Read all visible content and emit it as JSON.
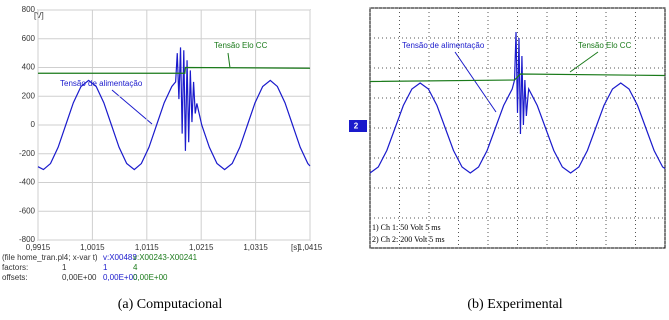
{
  "chart_data": [
    {
      "type": "line",
      "caption": "(a)  Computacional",
      "y_unit": "[V]",
      "x_unit": "[s]",
      "xlim": [
        0.9915,
        1.0415
      ],
      "xticks": [
        {
          "value": 0.9915,
          "label": "0,9915"
        },
        {
          "value": 1.0015,
          "label": "1,0015"
        },
        {
          "value": 1.0115,
          "label": "1,0115"
        },
        {
          "value": 1.0215,
          "label": "1,0215"
        },
        {
          "value": 1.0315,
          "label": "1,0315"
        },
        {
          "value": 1.0415,
          "label": "1,0415"
        }
      ],
      "ylim": [
        -800,
        800
      ],
      "yticks": [
        -800,
        -600,
        -400,
        -200,
        0,
        200,
        400,
        600,
        800
      ],
      "grid": true,
      "annotations": [
        "Tensão de alimentação",
        "Tensão Elo CC"
      ],
      "series": [
        {
          "color": "#1a1acc",
          "x": [
            0.9915,
            0.9925,
            0.9938,
            0.9952,
            0.9966,
            0.998,
            0.9994,
            1.0008,
            1.0022,
            1.0036,
            1.005,
            1.0064,
            1.0078,
            1.0092,
            1.0105,
            1.0119,
            1.0133,
            1.0147,
            1.0161,
            1.0168,
            1.0171,
            1.0174,
            1.0177,
            1.018,
            1.0183,
            1.0186,
            1.0189,
            1.0192,
            1.0195,
            1.0198,
            1.0201,
            1.0204,
            1.0207,
            1.0216,
            1.023,
            1.0244,
            1.0258,
            1.0272,
            1.0286,
            1.03,
            1.0314,
            1.0328,
            1.0342,
            1.0355,
            1.0369,
            1.0383,
            1.0397,
            1.0411,
            1.0415
          ],
          "values": [
            -290,
            -310,
            -268,
            -155,
            0,
            155,
            268,
            310,
            268,
            155,
            0,
            -155,
            -268,
            -310,
            -268,
            -155,
            0,
            155,
            268,
            300,
            500,
            180,
            540,
            -60,
            520,
            -180,
            450,
            -120,
            380,
            20,
            300,
            80,
            150,
            0,
            -155,
            -268,
            -310,
            -268,
            -155,
            0,
            155,
            268,
            310,
            268,
            155,
            0,
            -155,
            -268,
            -285
          ]
        },
        {
          "color": "#1a7a1a",
          "x": [
            0.9915,
            1.0185,
            1.0186,
            1.0415
          ],
          "values": [
            360,
            360,
            400,
            395
          ]
        }
      ],
      "footer": [
        [
          "(file home_tran.pl4; x-var t)",
          "v:X00483",
          "v:X00243-X00241"
        ],
        [
          "factors:",
          "1",
          "1",
          "4"
        ],
        [
          "offsets:",
          "0,00E+00",
          "0,00E+00",
          "0,00E+00"
        ]
      ]
    },
    {
      "type": "oscilloscope",
      "caption": "(b)  Experimental",
      "xlim": [
        0,
        10
      ],
      "xticks": [
        0,
        1,
        2,
        3,
        4,
        5,
        6,
        7,
        8,
        9,
        10
      ],
      "ylim": [
        -4,
        4
      ],
      "yticks": [
        -4,
        -3,
        -2,
        -1,
        0,
        1,
        2,
        3,
        4
      ],
      "grid": true,
      "annotations": [
        "Tensão de alimentação",
        "Tensão Elo CC"
      ],
      "channel_marker": "2",
      "channel_info": [
        "1) Ch 1:    50 Volt  5 ms",
        "2) Ch 2:    200 Volt  5 ms"
      ],
      "series": [
        {
          "color": "#1a1acc",
          "x": [
            0,
            0.28,
            0.57,
            0.85,
            1.13,
            1.42,
            1.7,
            1.98,
            2.27,
            2.55,
            2.83,
            3.12,
            3.4,
            3.68,
            3.97,
            4.25,
            4.53,
            4.82,
            4.9,
            4.95,
            5.0,
            5.05,
            5.1,
            5.15,
            5.2,
            5.25,
            5.3,
            5.35,
            5.38,
            5.67,
            5.95,
            6.23,
            6.52,
            6.8,
            7.08,
            7.37,
            7.65,
            7.93,
            8.22,
            8.5,
            8.78,
            9.07,
            9.35,
            9.63,
            9.92,
            10
          ],
          "values": [
            -1.5,
            -1.3,
            -0.75,
            0,
            0.75,
            1.3,
            1.5,
            1.3,
            0.75,
            0,
            -0.75,
            -1.3,
            -1.5,
            -1.3,
            -0.75,
            0,
            0.75,
            1.3,
            1.6,
            3.2,
            0.5,
            3.0,
            -0.2,
            2.4,
            0.1,
            1.6,
            0.4,
            1.0,
            1.3,
            0.75,
            0,
            -0.75,
            -1.3,
            -1.5,
            -1.3,
            -0.75,
            0,
            0.75,
            1.3,
            1.5,
            1.3,
            0.75,
            0,
            -0.75,
            -1.3,
            -1.35
          ]
        },
        {
          "color": "#1a7a1a",
          "x": [
            0,
            4.9,
            5.1,
            10
          ],
          "values": [
            1.55,
            1.6,
            1.8,
            1.75
          ]
        }
      ]
    }
  ]
}
